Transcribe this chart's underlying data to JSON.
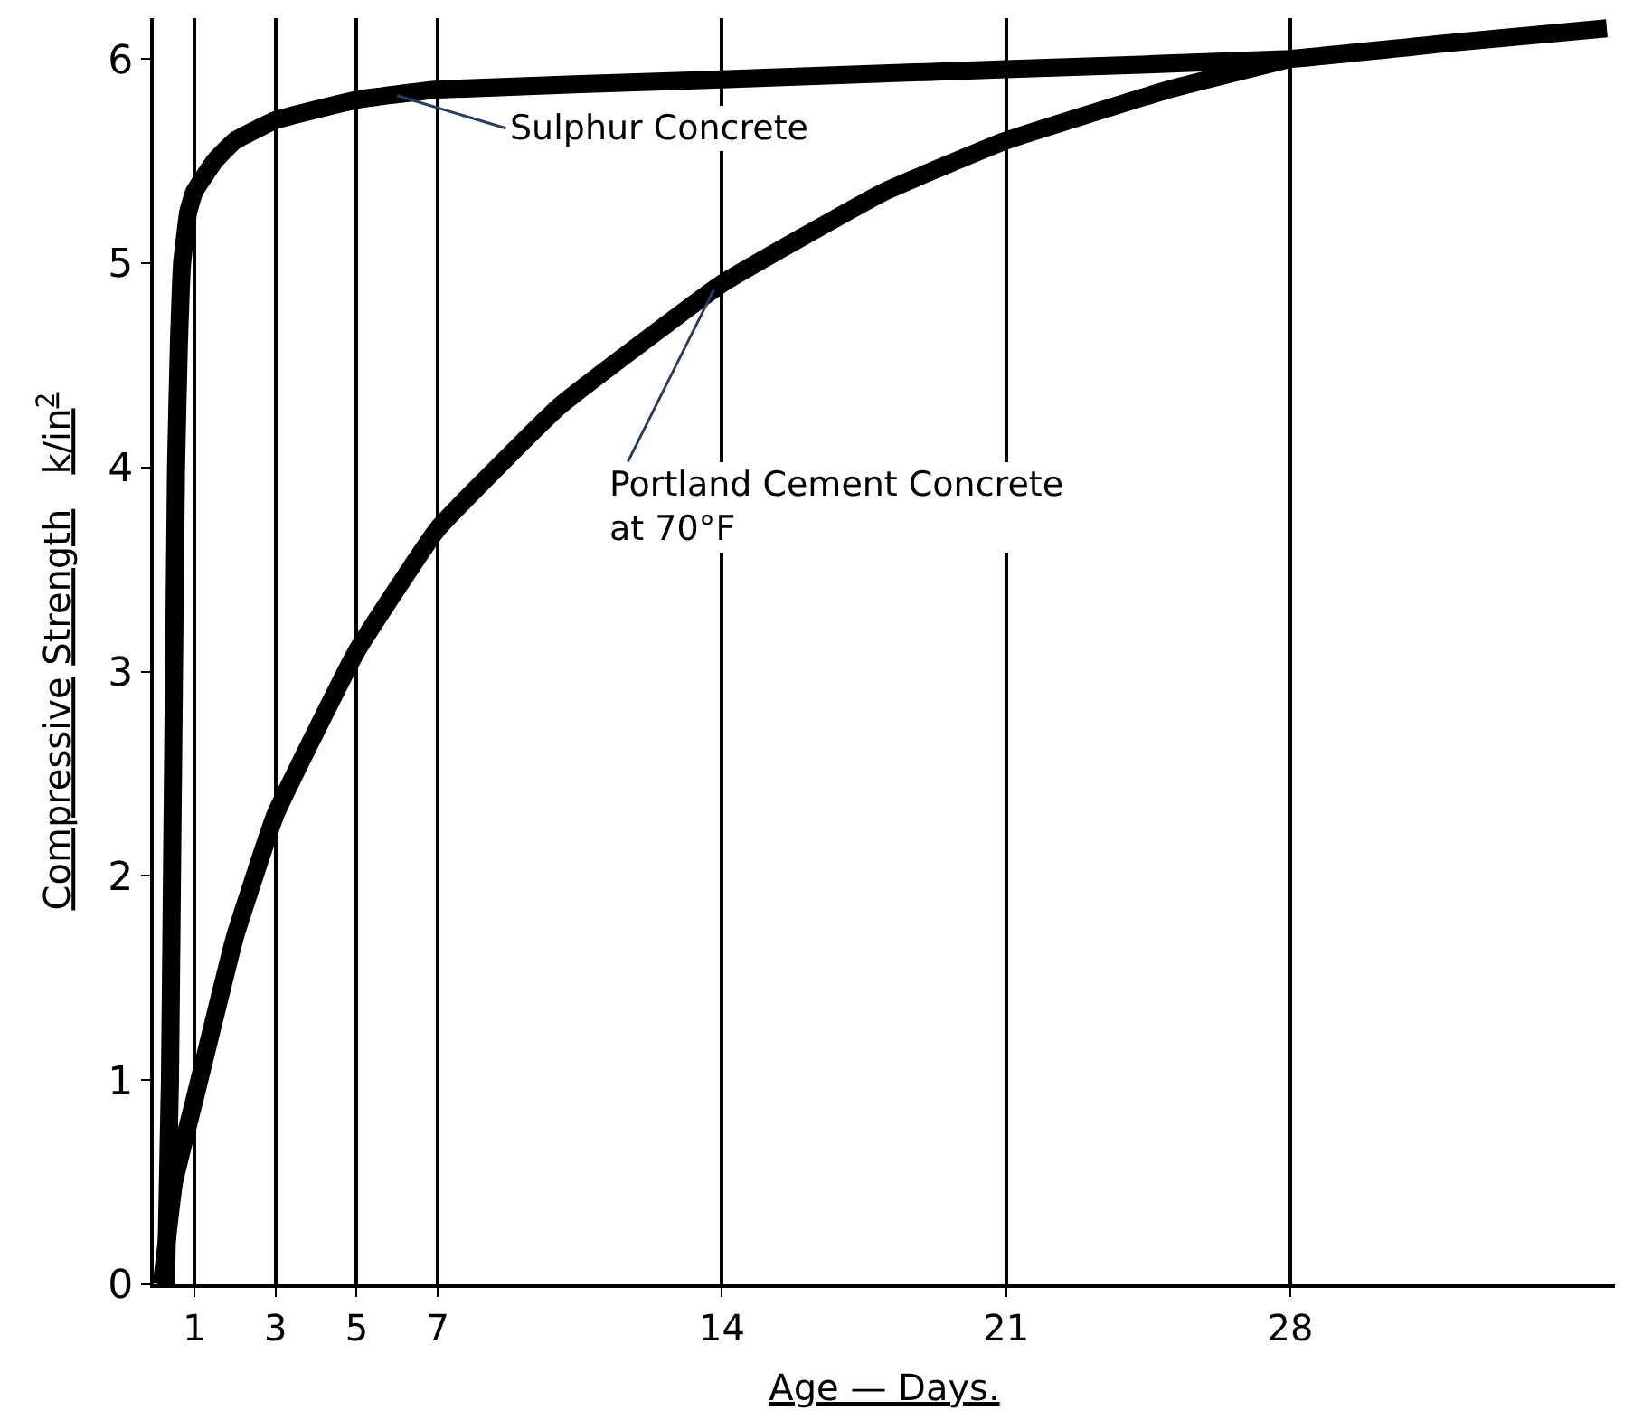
{
  "chart_data": {
    "type": "line",
    "xlabel": "Age — Days.",
    "ylabel": "Compressive Strength   k/in$^{2}$",
    "xlim": [
      0,
      36
    ],
    "xticks": [
      1,
      3,
      5,
      7,
      14,
      21,
      28
    ],
    "ylim": [
      0,
      6.2
    ],
    "yticks": [
      0,
      1,
      2,
      3,
      4,
      5,
      6
    ],
    "grid": "x",
    "marker": "none",
    "line_style": "solid",
    "series": [
      {
        "color": "#000000",
        "x": [
          0.3,
          0.4,
          0.45,
          0.5,
          0.55,
          0.62,
          0.7,
          0.85,
          1,
          1.5,
          2,
          3,
          5,
          7,
          14,
          21,
          28,
          32,
          35.8
        ],
        "values": [
          0,
          1,
          2,
          3,
          4,
          4.6,
          5,
          5.25,
          5.35,
          5.5,
          5.6,
          5.7,
          5.8,
          5.85,
          5.9,
          5.95,
          6.0,
          6.08,
          6.15
        ]
      },
      {
        "color": "#000000",
        "x": [
          0.2,
          0.5,
          1,
          2,
          3,
          5,
          7,
          10,
          14,
          18,
          21,
          25,
          28
        ],
        "values": [
          0,
          0.5,
          0.9,
          1.7,
          2.3,
          3.1,
          3.7,
          4.3,
          4.9,
          5.35,
          5.6,
          5.85,
          6.0
        ]
      }
    ],
    "annotations": [
      {
        "text": "Sulphur Concrete",
        "x": 6,
        "y": 5.82
      },
      {
        "text": "Portland Cement Concrete\nat 70°F",
        "x": 13.8,
        "y": 4.87
      }
    ]
  }
}
